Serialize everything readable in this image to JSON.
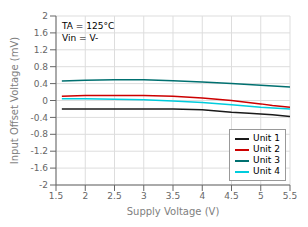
{
  "chart_data": {
    "type": "line",
    "xlabel": "Supply Voltage (V)",
    "ylabel": "Input Offset Voltage (mV)",
    "xlim": [
      1.5,
      5.5
    ],
    "ylim": [
      -2,
      2
    ],
    "xticks": [
      1.5,
      2.0,
      2.5,
      3.0,
      3.5,
      4.0,
      4.5,
      5.0,
      5.5
    ],
    "yticks": [
      -2,
      -1.6,
      -1.2,
      -0.8,
      -0.4,
      0,
      0.4,
      0.8,
      1.2,
      1.6,
      2
    ],
    "series": [
      {
        "name": "Unit 1",
        "color": "#1a1a1a",
        "x": [
          1.6,
          2.0,
          2.5,
          3.0,
          3.5,
          4.0,
          4.5,
          4.8,
          5.0,
          5.2,
          5.5
        ],
        "values": [
          -0.2,
          -0.2,
          -0.2,
          -0.2,
          -0.2,
          -0.22,
          -0.28,
          -0.3,
          -0.32,
          -0.34,
          -0.38
        ]
      },
      {
        "name": "Unit 2",
        "color": "#cc0000",
        "x": [
          1.6,
          2.0,
          2.5,
          3.0,
          3.5,
          4.0,
          4.5,
          5.0,
          5.2,
          5.5
        ],
        "values": [
          0.1,
          0.12,
          0.12,
          0.12,
          0.1,
          0.06,
          0.0,
          -0.08,
          -0.12,
          -0.16
        ]
      },
      {
        "name": "Unit 3",
        "color": "#007070",
        "x": [
          1.6,
          2.0,
          2.5,
          3.0,
          3.5,
          4.0,
          4.5,
          5.0,
          5.5
        ],
        "values": [
          0.46,
          0.48,
          0.49,
          0.49,
          0.47,
          0.44,
          0.4,
          0.36,
          0.32
        ]
      },
      {
        "name": "Unit 4",
        "color": "#00ccdd",
        "x": [
          1.6,
          2.0,
          2.5,
          3.0,
          3.5,
          4.0,
          4.5,
          5.0,
          5.5
        ],
        "values": [
          0.04,
          0.04,
          0.03,
          0.02,
          -0.01,
          -0.05,
          -0.1,
          -0.16,
          -0.2
        ]
      }
    ],
    "annotations": [
      "TA = 125°C",
      "Vin = V-"
    ],
    "grid": true,
    "legend": "lower right"
  }
}
